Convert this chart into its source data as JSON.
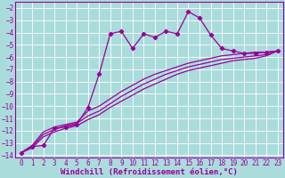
{
  "bg_color": "#aadcdc",
  "grid_color": "#c8e8e8",
  "line_color": "#990099",
  "marker": "D",
  "marker_size": 2.2,
  "line_width": 0.9,
  "xlabel": "Windchill (Refroidissement éolien,°C)",
  "xlabel_fontsize": 6.5,
  "xlim": [
    -0.5,
    23.5
  ],
  "ylim": [
    -14.2,
    -1.5
  ],
  "xticks": [
    0,
    1,
    2,
    3,
    4,
    5,
    6,
    7,
    8,
    9,
    10,
    11,
    12,
    13,
    14,
    15,
    16,
    17,
    18,
    19,
    20,
    21,
    22,
    23
  ],
  "yticks": [
    -14,
    -13,
    -12,
    -11,
    -10,
    -9,
    -8,
    -7,
    -6,
    -5,
    -4,
    -3,
    -2
  ],
  "tick_fontsize": 5.5,
  "lines": [
    {
      "x": [
        0,
        1,
        2,
        3,
        4,
        5,
        6,
        7,
        8,
        9,
        10,
        11,
        12,
        13,
        14,
        15,
        16,
        17,
        18,
        19,
        20,
        21,
        22,
        23
      ],
      "y": [
        -13.8,
        -13.3,
        -13.2,
        -11.8,
        -11.7,
        -11.5,
        -10.1,
        -7.4,
        -4.1,
        -3.9,
        -5.3,
        -4.1,
        -4.4,
        -3.9,
        -4.1,
        -2.3,
        -2.8,
        -4.2,
        -5.3,
        -5.5,
        -5.7,
        -5.7,
        -5.6,
        -5.5
      ],
      "has_markers": true
    },
    {
      "x": [
        0,
        1,
        2,
        3,
        4,
        5,
        6,
        7,
        8,
        9,
        10,
        11,
        12,
        13,
        14,
        15,
        16,
        17,
        18,
        19,
        20,
        21,
        22,
        23
      ],
      "y": [
        -13.8,
        -13.2,
        -12.1,
        -11.7,
        -11.5,
        -11.3,
        -10.4,
        -10.0,
        -9.4,
        -8.8,
        -8.3,
        -7.8,
        -7.4,
        -7.1,
        -6.8,
        -6.5,
        -6.3,
        -6.1,
        -5.9,
        -5.8,
        -5.7,
        -5.6,
        -5.6,
        -5.5
      ],
      "has_markers": false
    },
    {
      "x": [
        0,
        1,
        2,
        3,
        4,
        5,
        6,
        7,
        8,
        9,
        10,
        11,
        12,
        13,
        14,
        15,
        16,
        17,
        18,
        19,
        20,
        21,
        22,
        23
      ],
      "y": [
        -13.8,
        -13.3,
        -12.3,
        -11.9,
        -11.6,
        -11.4,
        -10.8,
        -10.4,
        -9.8,
        -9.2,
        -8.7,
        -8.2,
        -7.8,
        -7.4,
        -7.1,
        -6.8,
        -6.6,
        -6.4,
        -6.2,
        -6.1,
        -6.0,
        -5.9,
        -5.8,
        -5.5
      ],
      "has_markers": false
    },
    {
      "x": [
        0,
        1,
        2,
        3,
        4,
        5,
        6,
        7,
        8,
        9,
        10,
        11,
        12,
        13,
        14,
        15,
        16,
        17,
        18,
        19,
        20,
        21,
        22,
        23
      ],
      "y": [
        -13.8,
        -13.4,
        -12.5,
        -12.1,
        -11.8,
        -11.6,
        -11.1,
        -10.7,
        -10.1,
        -9.6,
        -9.1,
        -8.6,
        -8.2,
        -7.8,
        -7.4,
        -7.1,
        -6.9,
        -6.7,
        -6.5,
        -6.3,
        -6.2,
        -6.1,
        -5.9,
        -5.5
      ],
      "has_markers": false
    }
  ]
}
